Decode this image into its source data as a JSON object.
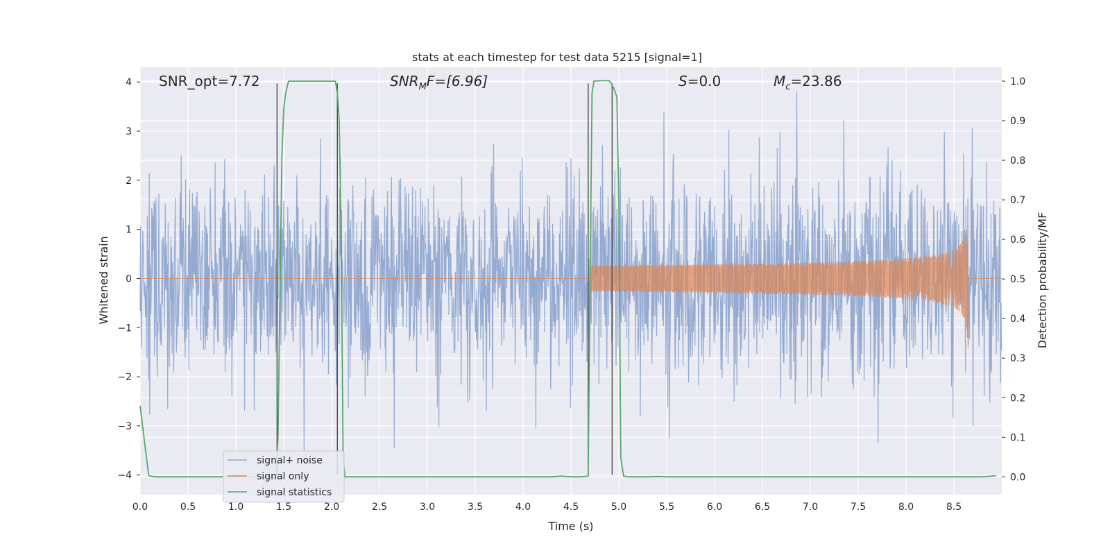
{
  "chart_data": {
    "type": "line",
    "title": "stats at each timestep for test data 5215 [signal=1]",
    "xlabel": "Time (s)",
    "ylabel": "Whitened strain",
    "y2label": "Detection probability/MF",
    "xlim": [
      0,
      9.0
    ],
    "ylim": [
      -4.4,
      4.3
    ],
    "y2lim": [
      -0.045,
      1.035
    ],
    "xticks": [
      0.0,
      0.5,
      1.0,
      1.5,
      2.0,
      2.5,
      3.0,
      3.5,
      4.0,
      4.5,
      5.0,
      5.5,
      6.0,
      6.5,
      7.0,
      7.5,
      8.0,
      8.5
    ],
    "xtick_labels": [
      "0.0",
      "0.5",
      "1.0",
      "1.5",
      "2.0",
      "2.5",
      "3.0",
      "3.5",
      "4.0",
      "4.5",
      "5.0",
      "5.5",
      "6.0",
      "6.5",
      "7.0",
      "7.5",
      "8.0",
      "8.5"
    ],
    "yticks": [
      4,
      3,
      2,
      1,
      0,
      -1,
      -2,
      -3,
      -4
    ],
    "ytick_labels": [
      "4",
      "3",
      "2",
      "1",
      "0",
      "−1",
      "−2",
      "−3",
      "−4"
    ],
    "y2ticks": [
      1.0,
      0.9,
      0.8,
      0.7,
      0.6,
      0.5,
      0.4,
      0.3,
      0.2,
      0.1,
      0.0
    ],
    "y2tick_labels": [
      "1.0",
      "0.9",
      "0.8",
      "0.7",
      "0.6",
      "0.5",
      "0.4",
      "0.3",
      "0.2",
      "0.1",
      "0.0"
    ],
    "grid": true,
    "legend_position": "lower-left",
    "annotations": {
      "snr_opt": "SNR_opt=7.72",
      "snr_mf_base": "SNR",
      "snr_mf_sub": "M",
      "snr_mf_rest": "F=[6.96]",
      "s_var": "S",
      "s_rest": "=0.0",
      "mc_base": "M",
      "mc_sub": "c",
      "mc_rest": "=23.86"
    },
    "series": [
      {
        "name": "signal+ noise",
        "color": "#8fa6cf",
        "kind": "noise",
        "sample_rate_hz": 240,
        "std": 1.0,
        "approx_range": [
          -4.0,
          3.9
        ]
      },
      {
        "name": "signal only",
        "color": "#dd8452",
        "kind": "chirp",
        "merger_time": 8.65,
        "peak_amplitude": 1.6,
        "chirp_start": 4.7,
        "min_value": -1.5
      },
      {
        "name": "signal statistics",
        "color": "#55a868",
        "axis": "right",
        "x": [
          0.0,
          0.03,
          0.06,
          0.09,
          0.15,
          0.5,
          1.0,
          1.4,
          1.42,
          1.44,
          1.46,
          1.48,
          1.5,
          1.52,
          1.55,
          1.6,
          1.7,
          2.0,
          2.04,
          2.06,
          2.08,
          2.1,
          2.12,
          2.14,
          2.2,
          2.5,
          3.0,
          3.5,
          4.0,
          4.3,
          4.4,
          4.5,
          4.6,
          4.68,
          4.7,
          4.72,
          4.74,
          4.8,
          4.9,
          4.92,
          4.95,
          4.98,
          5.0,
          5.02,
          5.05,
          5.1,
          5.2,
          5.3,
          5.4,
          5.5,
          6.0,
          7.0,
          8.0,
          8.5,
          8.8,
          8.94
        ],
        "y": [
          0.18,
          0.12,
          0.06,
          0.003,
          0.0,
          0.0,
          0.0,
          0.0,
          0.0,
          0.1,
          0.45,
          0.8,
          0.93,
          0.97,
          1.0,
          1.0,
          1.0,
          1.0,
          1.0,
          0.97,
          0.9,
          0.6,
          0.05,
          0.0,
          0.0,
          0.0,
          0.0,
          0.0,
          0.0,
          0.0,
          0.002,
          0.0,
          0.0,
          0.002,
          0.5,
          0.97,
          1.0,
          1.001,
          1.001,
          0.995,
          0.98,
          0.96,
          0.7,
          0.05,
          0.002,
          0.0,
          0.0,
          0.0,
          0.001,
          0.0,
          0.0,
          0.0,
          0.0,
          0.0,
          0.0,
          0.003
        ]
      }
    ],
    "vertical_lines": [
      {
        "x": 1.43,
        "from": 4.0,
        "to": -4.0
      },
      {
        "x": 2.06,
        "from": 4.0,
        "to": -4.0
      },
      {
        "x": 4.68,
        "from": 4.0,
        "to": -4.0
      },
      {
        "x": 4.93,
        "from": 4.0,
        "to": -4.0
      }
    ]
  }
}
